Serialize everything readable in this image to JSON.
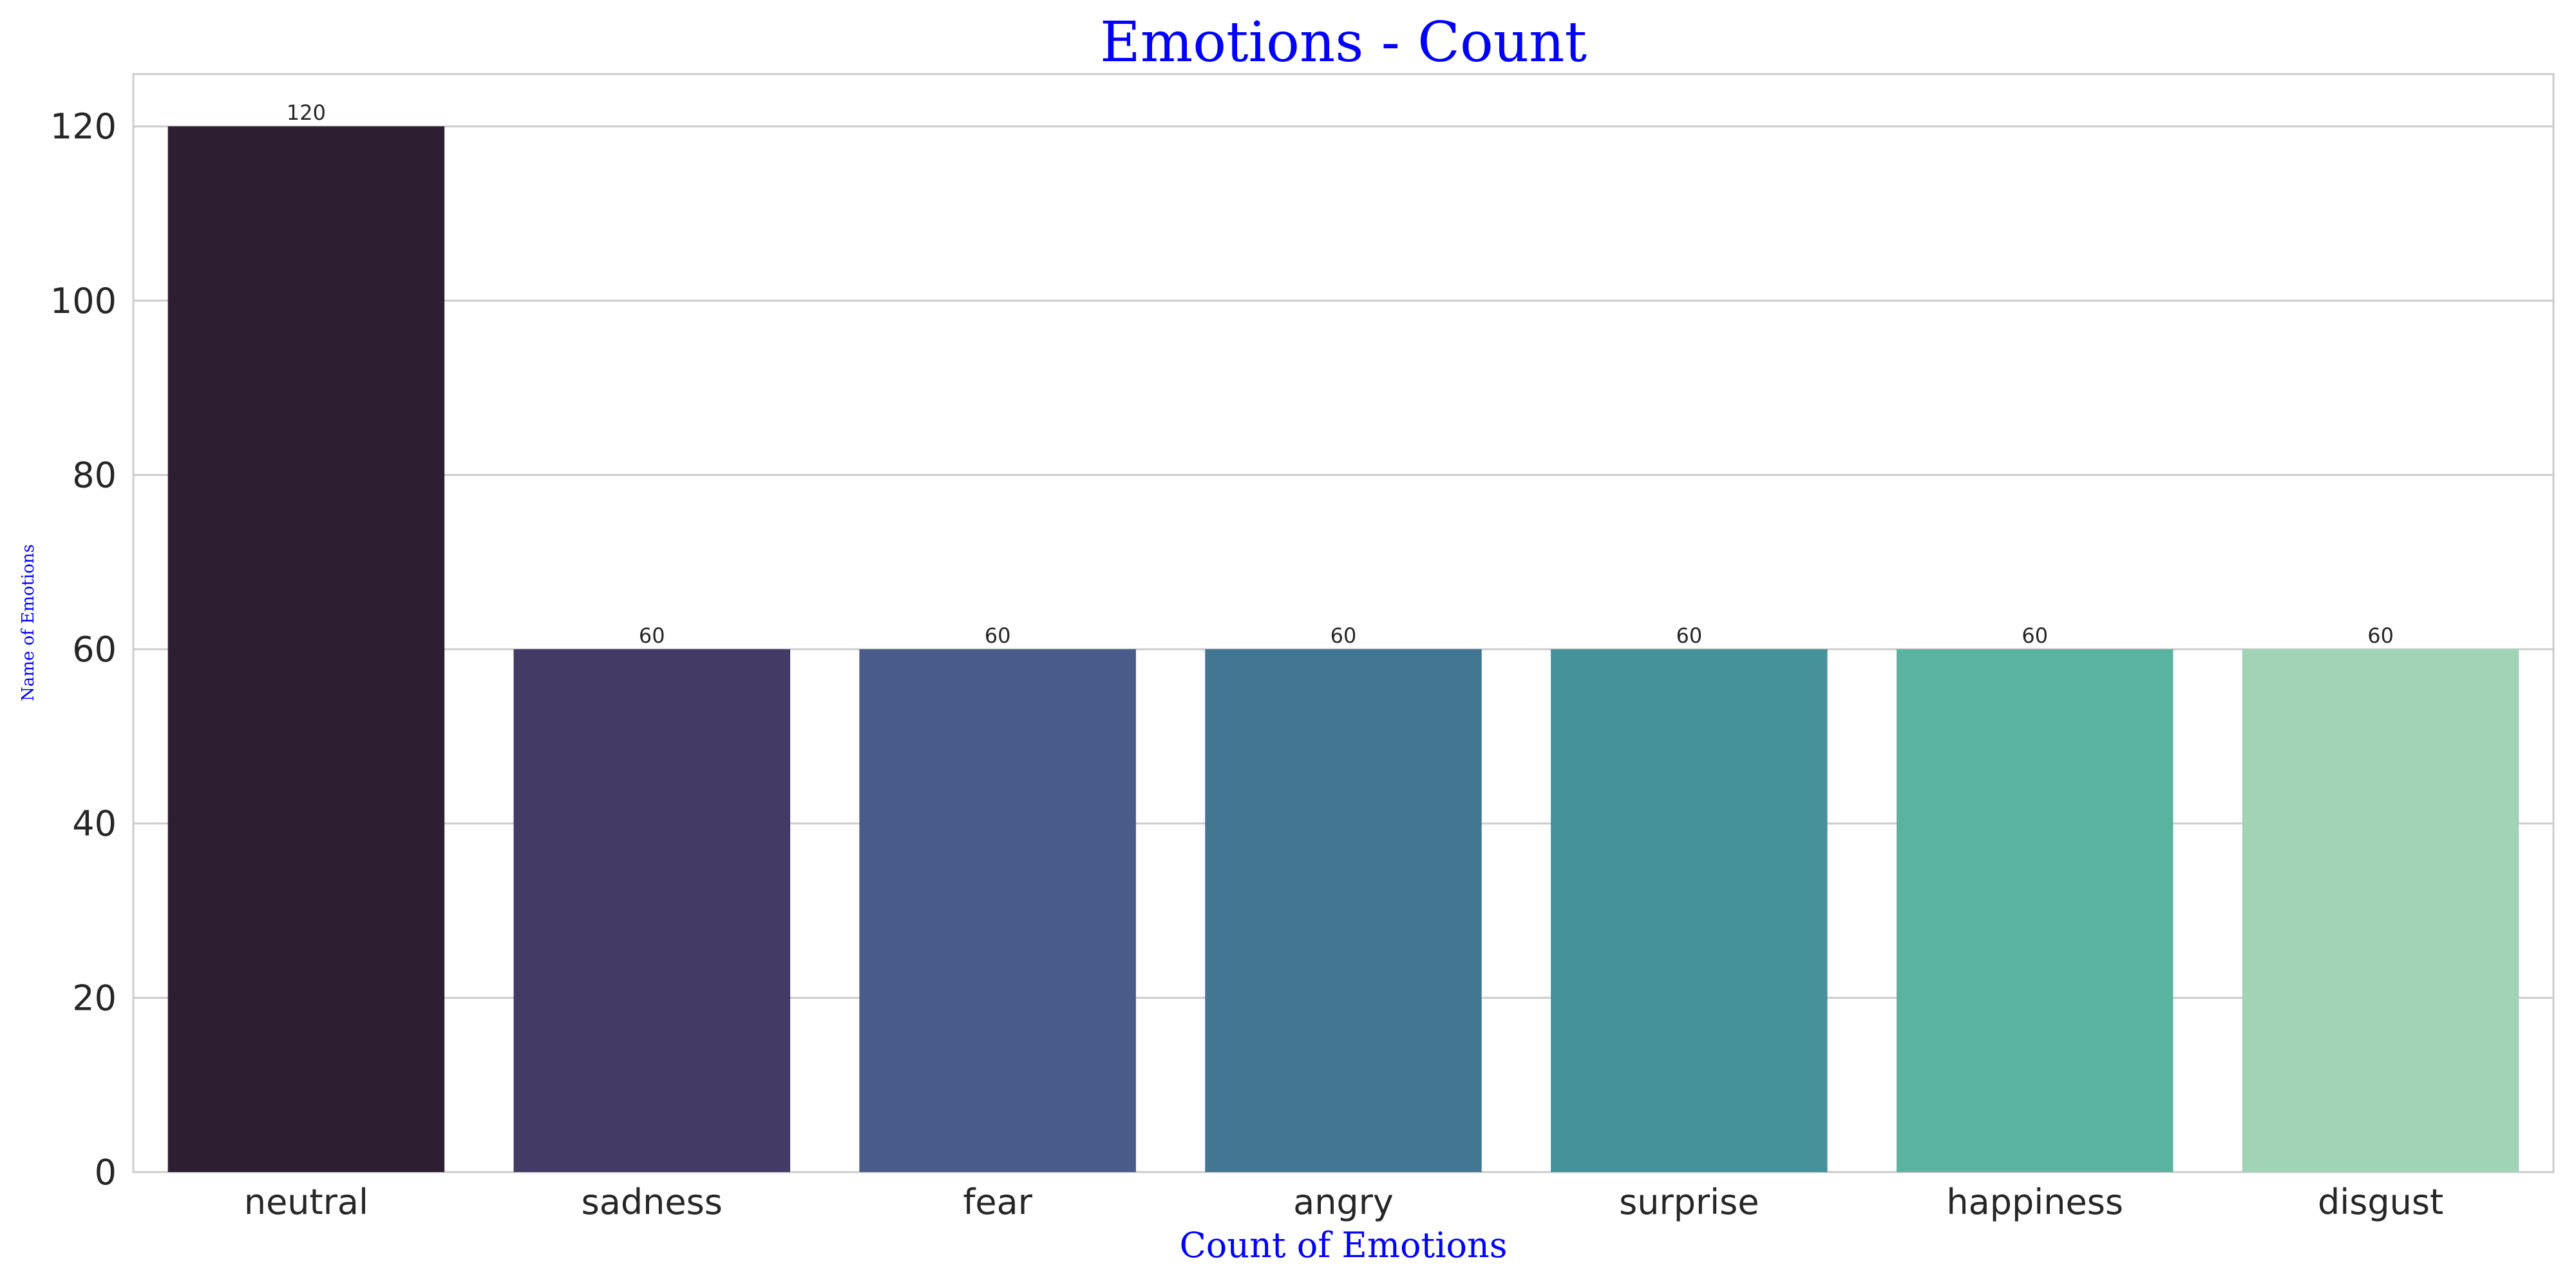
{
  "chart_data": {
    "type": "bar",
    "title": "Emotions - Count",
    "xlabel": "Count of Emotions",
    "ylabel": "Name of Emotions",
    "categories": [
      "neutral",
      "sadness",
      "fear",
      "angry",
      "surprise",
      "happiness",
      "disgust"
    ],
    "values": [
      120,
      60,
      60,
      60,
      60,
      60,
      60
    ],
    "data_labels": [
      "120",
      "60",
      "60",
      "60",
      "60",
      "60",
      "60"
    ],
    "colors": [
      "#2d1f31",
      "#433b65",
      "#485b8a",
      "#437692",
      "#45929b",
      "#59b3a0",
      "#a1d3b7"
    ],
    "ylim": [
      0,
      126
    ],
    "yticks": [
      0,
      20,
      40,
      60,
      80,
      100,
      120
    ],
    "grid": true,
    "legend": "none"
  }
}
